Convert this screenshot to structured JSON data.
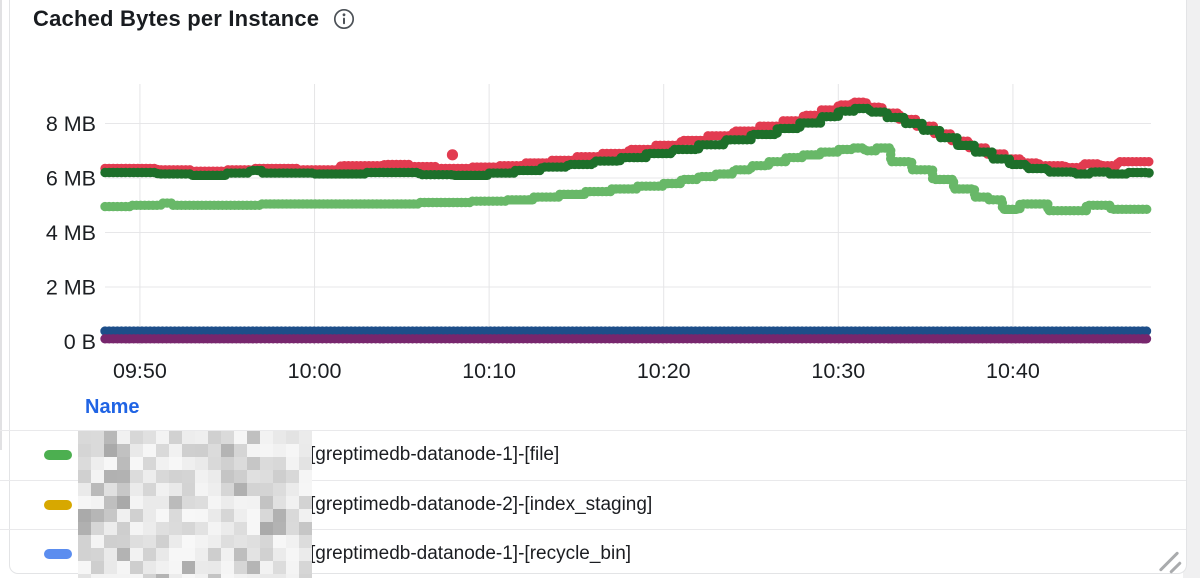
{
  "panel": {
    "title": "Cached Bytes per Instance",
    "info_icon": "info-circle"
  },
  "chart_data": {
    "type": "line",
    "style": "stepped dotted scatter line",
    "title": "Cached Bytes per Instance",
    "grid": true,
    "x_axis": {
      "tick_labels": [
        "09:50",
        "10:00",
        "10:10",
        "10:20",
        "10:30",
        "10:40"
      ],
      "tick_minutes": [
        2,
        12,
        22,
        32,
        42,
        52
      ],
      "domain_start_time": "09:48",
      "domain_minutes": [
        0,
        60
      ]
    },
    "y_axis": {
      "tick_labels": [
        "0 B",
        "2 MB",
        "4 MB",
        "6 MB",
        "8 MB"
      ],
      "tick_mb": [
        0,
        2,
        4,
        6,
        8
      ],
      "range_mb": [
        0,
        9.4
      ]
    },
    "series": [
      {
        "name": "navy-blue-flat",
        "color": "#1d4e89",
        "points": [
          [
            0,
            0.38
          ],
          [
            59.8,
            0.38
          ]
        ]
      },
      {
        "name": "purple-flat",
        "color": "#77266d",
        "points": [
          [
            0,
            0.1
          ],
          [
            59.8,
            0.1
          ]
        ]
      },
      {
        "name": "light-green",
        "color": "#68b868",
        "points": [
          [
            0,
            4.95
          ],
          [
            1.5,
            5.0
          ],
          [
            3.2,
            5.08
          ],
          [
            3.8,
            5.0
          ],
          [
            9,
            5.05
          ],
          [
            14,
            5.05
          ],
          [
            18,
            5.1
          ],
          [
            21,
            5.15
          ],
          [
            23,
            5.2
          ],
          [
            24.5,
            5.3
          ],
          [
            26,
            5.4
          ],
          [
            27.5,
            5.5
          ],
          [
            29,
            5.6
          ],
          [
            30.5,
            5.7
          ],
          [
            32,
            5.8
          ],
          [
            33,
            5.95
          ],
          [
            34,
            6.05
          ],
          [
            35,
            6.15
          ],
          [
            36,
            6.3
          ],
          [
            37,
            6.45
          ],
          [
            38,
            6.6
          ],
          [
            39,
            6.75
          ],
          [
            40,
            6.85
          ],
          [
            41,
            6.95
          ],
          [
            42,
            7.05
          ],
          [
            42.8,
            7.1
          ],
          [
            43.5,
            7.0
          ],
          [
            44.2,
            7.1
          ],
          [
            45,
            6.6
          ],
          [
            46.2,
            6.3
          ],
          [
            47.4,
            5.95
          ],
          [
            48.6,
            5.6
          ],
          [
            49.8,
            5.3
          ],
          [
            50.6,
            5.2
          ],
          [
            51.4,
            4.85
          ],
          [
            52.4,
            5.05
          ],
          [
            54,
            4.8
          ],
          [
            56.2,
            5.0
          ],
          [
            57.6,
            4.85
          ],
          [
            59.8,
            4.85
          ]
        ]
      },
      {
        "name": "red",
        "color": "#e23b50",
        "points": [
          [
            0,
            6.35
          ],
          [
            3,
            6.3
          ],
          [
            5,
            6.25
          ],
          [
            7,
            6.3
          ],
          [
            8.5,
            6.35
          ],
          [
            11,
            6.3
          ],
          [
            13.5,
            6.45
          ],
          [
            16,
            6.5
          ],
          [
            17.5,
            6.42
          ],
          [
            19,
            6.35
          ],
          [
            21,
            6.4
          ],
          [
            22.5,
            6.45
          ],
          [
            24,
            6.55
          ],
          [
            25.5,
            6.65
          ],
          [
            27,
            6.78
          ],
          [
            28.5,
            6.9
          ],
          [
            30,
            7.05
          ],
          [
            31.5,
            7.2
          ],
          [
            33,
            7.38
          ],
          [
            34.5,
            7.55
          ],
          [
            36,
            7.72
          ],
          [
            37.5,
            7.9
          ],
          [
            38.8,
            8.1
          ],
          [
            40,
            8.3
          ],
          [
            41,
            8.5
          ],
          [
            42,
            8.68
          ],
          [
            42.8,
            8.78
          ],
          [
            43.6,
            8.6
          ],
          [
            44.5,
            8.38
          ],
          [
            45.5,
            8.15
          ],
          [
            46.5,
            7.9
          ],
          [
            47.5,
            7.62
          ],
          [
            48.5,
            7.35
          ],
          [
            49.5,
            7.1
          ],
          [
            50.5,
            6.88
          ],
          [
            51.5,
            6.7
          ],
          [
            52.5,
            6.55
          ],
          [
            53.5,
            6.45
          ],
          [
            55,
            6.38
          ],
          [
            56,
            6.52
          ],
          [
            57,
            6.45
          ],
          [
            58,
            6.6
          ],
          [
            59.8,
            6.62
          ]
        ]
      },
      {
        "name": "dark-green",
        "color": "#1d6f2a",
        "points": [
          [
            0,
            6.2
          ],
          [
            3,
            6.15
          ],
          [
            5,
            6.1
          ],
          [
            7,
            6.18
          ],
          [
            8.3,
            6.28
          ],
          [
            9,
            6.18
          ],
          [
            12,
            6.15
          ],
          [
            15,
            6.2
          ],
          [
            18,
            6.12
          ],
          [
            20,
            6.1
          ],
          [
            22,
            6.18
          ],
          [
            23.5,
            6.28
          ],
          [
            25,
            6.4
          ],
          [
            26.5,
            6.5
          ],
          [
            28,
            6.62
          ],
          [
            29.5,
            6.75
          ],
          [
            31,
            6.9
          ],
          [
            32.5,
            7.05
          ],
          [
            34,
            7.22
          ],
          [
            35.5,
            7.4
          ],
          [
            37,
            7.6
          ],
          [
            38.5,
            7.82
          ],
          [
            39.8,
            8.02
          ],
          [
            41,
            8.25
          ],
          [
            42,
            8.45
          ],
          [
            42.9,
            8.55
          ],
          [
            43.8,
            8.42
          ],
          [
            44.8,
            8.22
          ],
          [
            45.8,
            8.0
          ],
          [
            46.8,
            7.75
          ],
          [
            47.8,
            7.48
          ],
          [
            48.8,
            7.2
          ],
          [
            49.8,
            6.95
          ],
          [
            50.8,
            6.7
          ],
          [
            51.8,
            6.5
          ],
          [
            52.8,
            6.35
          ],
          [
            54,
            6.22
          ],
          [
            55.5,
            6.15
          ],
          [
            56.5,
            6.22
          ],
          [
            57.5,
            6.15
          ],
          [
            58.5,
            6.2
          ],
          [
            59.8,
            6.15
          ]
        ]
      }
    ],
    "outliers": [
      {
        "series": "red",
        "minute": 19.9,
        "mb": 6.85,
        "color": "#e23b50"
      }
    ]
  },
  "legend": {
    "header": "Name",
    "rows": [
      {
        "marker_color": "#4caf50",
        "redacted_prefix": true,
        "label": "[greptimedb-datanode-1]-[file]"
      },
      {
        "marker_color": "#d7a800",
        "redacted_prefix": true,
        "label": "[greptimedb-datanode-2]-[index_staging]"
      },
      {
        "marker_color": "#5b8def",
        "redacted_prefix": true,
        "label": "[greptimedb-datanode-1]-[recycle_bin]"
      }
    ]
  }
}
